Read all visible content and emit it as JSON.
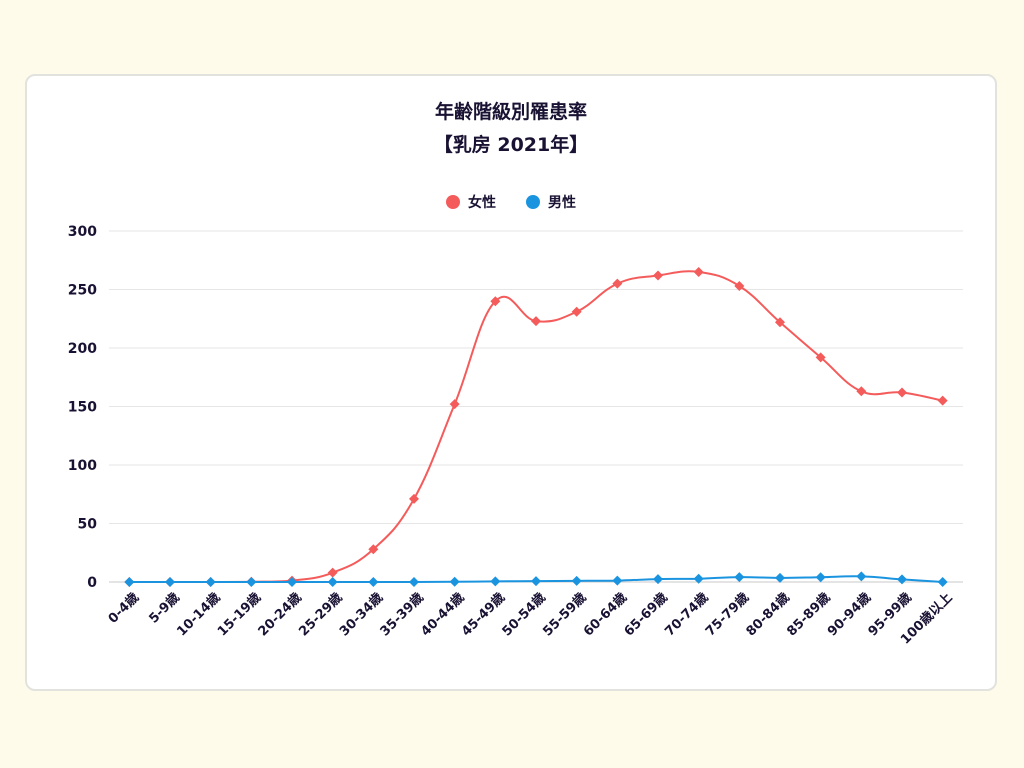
{
  "chart_data": {
    "type": "line",
    "title": [
      "年齢階級別罹患率",
      "【乳房 2021年】"
    ],
    "categories": [
      "0-4歳",
      "5-9歳",
      "10-14歳",
      "15-19歳",
      "20-24歳",
      "25-29歳",
      "30-34歳",
      "35-39歳",
      "40-44歳",
      "45-49歳",
      "50-54歳",
      "55-59歳",
      "60-64歳",
      "65-69歳",
      "70-74歳",
      "75-79歳",
      "80-84歳",
      "85-89歳",
      "90-94歳",
      "95-99歳",
      "100歳以上"
    ],
    "series": [
      {
        "name": "女性",
        "color": "#f45b5b",
        "values": [
          0,
          0,
          0,
          0.2,
          1.2,
          8,
          28,
          71,
          152,
          240,
          223,
          231,
          255,
          262,
          265,
          253,
          222,
          192,
          163,
          162,
          155
        ]
      },
      {
        "name": "男性",
        "color": "#1b94e0",
        "values": [
          0,
          0,
          0,
          0,
          0,
          0,
          0,
          0,
          0.2,
          0.5,
          0.8,
          1,
          1.2,
          2.5,
          2.8,
          4.2,
          3.5,
          4.1,
          4.8,
          2.2,
          0
        ]
      }
    ],
    "ylim": [
      0,
      300
    ],
    "yticks": [
      0,
      50,
      100,
      150,
      200,
      250,
      300
    ],
    "grid": true,
    "legend_position": "top-center"
  }
}
